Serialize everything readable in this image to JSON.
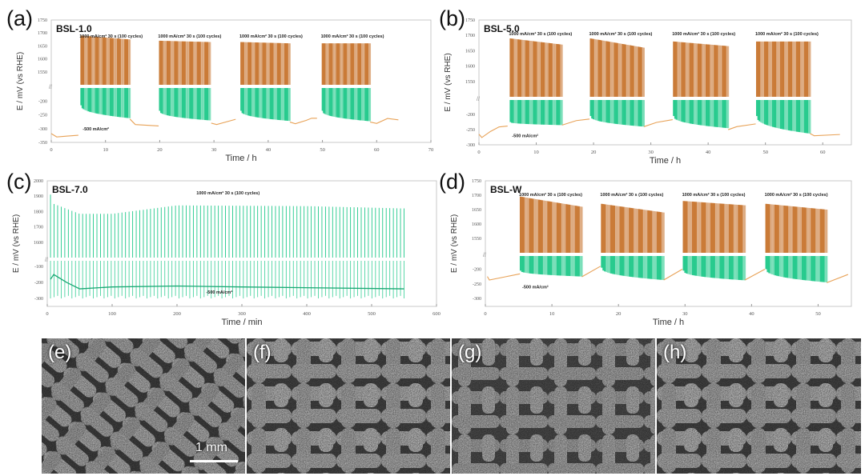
{
  "panel_labels": [
    "(a)",
    "(b)",
    "(c)",
    "(d)",
    "(e)",
    "(f)",
    "(g)",
    "(h)"
  ],
  "scale_bar": "1 mm",
  "colors": {
    "oer": "#c8752f",
    "her": "#1fc98a",
    "rest": "#e8a257",
    "axis": "#999999"
  },
  "chart_data": [
    {
      "type": "line",
      "title": "BSL-1.0",
      "xlabel": "Time / h",
      "ylabel": "E / mV (vs RHE)",
      "xlim": [
        0,
        70
      ],
      "xticks": [
        0,
        10,
        20,
        30,
        40,
        50,
        60,
        70
      ],
      "ylim_upper": [
        1500,
        1750
      ],
      "yticks_upper": [
        1750,
        1700,
        1650,
        1600,
        1550
      ],
      "ylim_lower": [
        -350,
        -152
      ],
      "yticks_lower": [
        -200,
        -250,
        -300,
        -350
      ],
      "cycle_label": "1000 mA/cm² 30 s (100 cycles)",
      "current_label": "-500 mA/cm²",
      "blocks": [
        {
          "t": [
            5.5,
            14.5
          ],
          "oer_peak": [
            1690,
            1675
          ],
          "her_floor": [
            -215,
            -262
          ]
        },
        {
          "t": [
            20,
            29.3
          ],
          "oer_peak": [
            1670,
            1665
          ],
          "her_floor": [
            -235,
            -270
          ]
        },
        {
          "t": [
            35,
            44
          ],
          "oer_peak": [
            1665,
            1660
          ],
          "her_floor": [
            -235,
            -272
          ]
        },
        {
          "t": [
            50,
            58.8
          ],
          "oer_peak": [
            1660,
            1660
          ],
          "her_floor": [
            -235,
            -273
          ]
        }
      ],
      "rest": [
        [
          [
            0,
            -318
          ],
          [
            1,
            -330
          ],
          [
            3,
            -327
          ],
          [
            5,
            -324
          ]
        ],
        [
          [
            14.5,
            -265
          ],
          [
            15.5,
            -285
          ],
          [
            19.8,
            -290
          ]
        ],
        [
          [
            29.5,
            -280
          ],
          [
            30.5,
            -285
          ],
          [
            34,
            -266
          ]
        ],
        [
          [
            44,
            -276
          ],
          [
            45,
            -282
          ],
          [
            47,
            -270
          ],
          [
            48,
            -262
          ],
          [
            49,
            -262
          ]
        ],
        [
          [
            58.8,
            -276
          ],
          [
            60,
            -281
          ],
          [
            62,
            -263
          ],
          [
            64,
            -268
          ]
        ]
      ]
    },
    {
      "type": "line",
      "title": "BSL-5.0",
      "xlabel": "Time / h",
      "ylabel": "E / mV (vs RHE)",
      "xlim": [
        0,
        65
      ],
      "xticks": [
        0,
        10,
        20,
        30,
        40,
        50,
        60
      ],
      "ylim_upper": [
        1500,
        1750
      ],
      "yticks_upper": [
        1750,
        1700,
        1650,
        1600,
        1550
      ],
      "ylim_lower": [
        -300,
        -152
      ],
      "yticks_lower": [
        -200,
        -250,
        -300
      ],
      "cycle_label": "1000 mA/cm² 30 s (100 cycles)",
      "current_label": "-500 mA/cm²",
      "blocks": [
        {
          "t": [
            5.5,
            14.5
          ],
          "oer_peak": [
            1690,
            1670
          ],
          "her_floor": [
            -225,
            -235
          ]
        },
        {
          "t": [
            19.5,
            28.8
          ],
          "oer_peak": [
            1690,
            1660
          ],
          "her_floor": [
            -205,
            -240
          ]
        },
        {
          "t": [
            34,
            43.5
          ],
          "oer_peak": [
            1680,
            1665
          ],
          "her_floor": [
            -205,
            -245
          ]
        },
        {
          "t": [
            48.5,
            57.8
          ],
          "oer_peak": [
            1680,
            1680
          ],
          "her_floor": [
            -205,
            -263
          ]
        }
      ],
      "rest": [
        [
          [
            0,
            -265
          ],
          [
            0.5,
            -276
          ],
          [
            2,
            -256
          ],
          [
            3.5,
            -241
          ],
          [
            5,
            -238
          ]
        ],
        [
          [
            14.5,
            -235
          ],
          [
            17,
            -220
          ],
          [
            19.3,
            -215
          ]
        ],
        [
          [
            28.8,
            -240
          ],
          [
            31,
            -226
          ],
          [
            33.8,
            -217
          ]
        ],
        [
          [
            43.5,
            -250
          ],
          [
            45,
            -240
          ],
          [
            48.3,
            -231
          ]
        ],
        [
          [
            57.8,
            -263
          ],
          [
            58.5,
            -270
          ],
          [
            63,
            -266
          ]
        ]
      ]
    },
    {
      "type": "line",
      "title": "BSL-7.0",
      "xlabel": "Time / min",
      "ylabel": "E / mV (vs RHE)",
      "xlim": [
        0,
        600
      ],
      "xticks": [
        0,
        100,
        200,
        300,
        400,
        500,
        600
      ],
      "ylim_upper": [
        1500,
        2000
      ],
      "yticks_upper": [
        2000,
        1900,
        1800,
        1700,
        1600
      ],
      "ylim_lower": [
        -350,
        -64
      ],
      "yticks_lower": [
        -100,
        -200,
        -300
      ],
      "cycle_label": "1000 mA/cm² 30 s (100 cycles)",
      "current_label": "-500 mA/cm²",
      "spikes": {
        "t": [
          5,
          550
        ],
        "count": 100,
        "peak_profile": [
          [
            5,
            1910
          ],
          [
            10,
            1850
          ],
          [
            50,
            1785
          ],
          [
            100,
            1785
          ],
          [
            200,
            1840
          ],
          [
            400,
            1835
          ],
          [
            550,
            1820
          ]
        ],
        "floor": -300
      },
      "baseline": [
        [
          5,
          -180
        ],
        [
          10,
          -150
        ],
        [
          30,
          -200
        ],
        [
          50,
          -240
        ],
        [
          100,
          -228
        ],
        [
          200,
          -222
        ],
        [
          300,
          -228
        ],
        [
          550,
          -240
        ]
      ]
    },
    {
      "type": "line",
      "title": "BSL-W",
      "xlabel": "Time / h",
      "ylabel": "E / mV (vs RHE)",
      "xlim": [
        0,
        55
      ],
      "xticks": [
        0,
        10,
        20,
        30,
        40,
        50
      ],
      "ylim_upper": [
        1500,
        1750
      ],
      "yticks_upper": [
        1750,
        1700,
        1650,
        1600,
        1550
      ],
      "ylim_lower": [
        -327,
        -155
      ],
      "yticks_lower": [
        -200,
        -250,
        -300
      ],
      "cycle_label": "1000 mA/cm² 30 s (100 cycles)",
      "current_label": "-500 mA/cm²",
      "blocks": [
        {
          "t": [
            5.3,
            14.5
          ],
          "oer_peak": [
            1695,
            1660
          ],
          "her_floor": [
            -205,
            -225
          ]
        },
        {
          "t": [
            17.5,
            26.8
          ],
          "oer_peak": [
            1670,
            1640
          ],
          "her_floor": [
            -195,
            -237
          ]
        },
        {
          "t": [
            29.8,
            39
          ],
          "oer_peak": [
            1680,
            1665
          ],
          "her_floor": [
            -205,
            -238
          ]
        },
        {
          "t": [
            42.2,
            51.3
          ],
          "oer_peak": [
            1670,
            1650
          ],
          "her_floor": [
            -200,
            -245
          ]
        }
      ],
      "rest": [
        [
          [
            0.3,
            -225
          ],
          [
            0.6,
            -237
          ],
          [
            3,
            -226
          ],
          [
            5.2,
            -216
          ]
        ],
        [
          [
            14.5,
            -226
          ],
          [
            17.3,
            -190
          ]
        ],
        [
          [
            26.8,
            -237
          ],
          [
            29.6,
            -200
          ]
        ],
        [
          [
            39,
            -237
          ],
          [
            42,
            -200
          ]
        ],
        [
          [
            51.3,
            -246
          ],
          [
            54.5,
            -218
          ]
        ]
      ]
    }
  ]
}
